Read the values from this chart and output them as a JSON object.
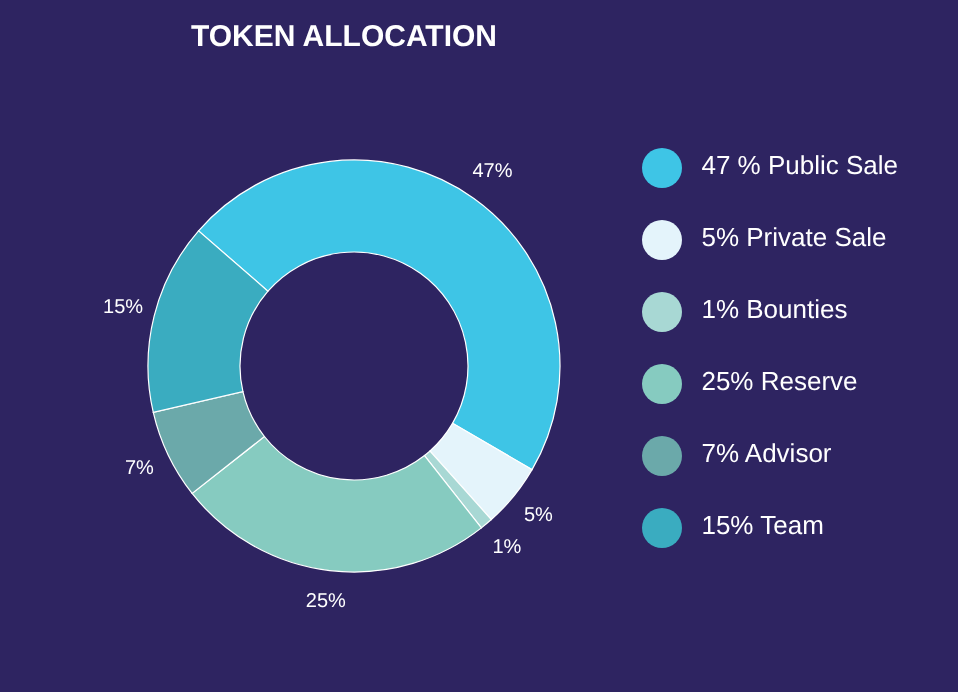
{
  "chart_data": {
    "type": "donut",
    "title": "TOKEN ALLOCATION",
    "categories": [
      "47 % Public Sale",
      "5% Private Sale",
      "1% Bounties",
      "25% Reserve",
      "7% Advisor",
      "15% Team"
    ],
    "values": [
      47,
      5,
      1,
      25,
      7,
      15
    ],
    "colors": [
      "#3ec5e6",
      "#e4f4fb",
      "#a8d8d4",
      "#86cbc0",
      "#6ba9aa",
      "#3aacc0"
    ],
    "value_labels": [
      "47%",
      "5%",
      "1%",
      "25%",
      "7%",
      "15%"
    ],
    "legend": "right"
  }
}
